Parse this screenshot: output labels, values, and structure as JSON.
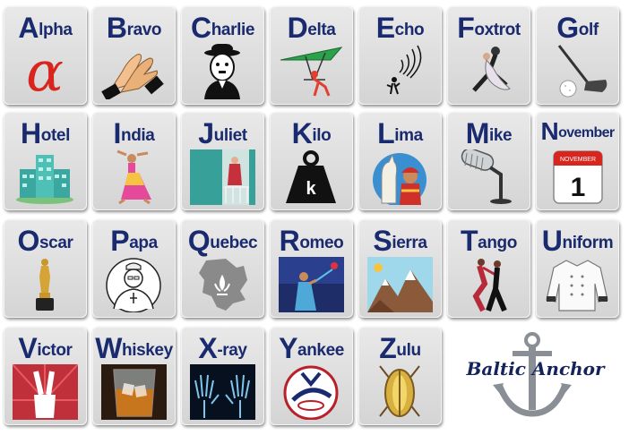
{
  "cards": [
    {
      "first": "A",
      "rest": "lpha",
      "icon": "alpha-symbol-icon"
    },
    {
      "first": "B",
      "rest": "ravo",
      "icon": "clapping-hands-icon"
    },
    {
      "first": "C",
      "rest": "harlie",
      "icon": "charlie-chaplin-icon"
    },
    {
      "first": "D",
      "rest": "elta",
      "icon": "hang-glider-icon"
    },
    {
      "first": "E",
      "rest": "cho",
      "icon": "echo-signal-icon"
    },
    {
      "first": "F",
      "rest": "oxtrot",
      "icon": "dancing-couple-icon"
    },
    {
      "first": "G",
      "rest": "olf",
      "icon": "golf-club-ball-icon"
    },
    {
      "first": "H",
      "rest": "otel",
      "icon": "hotel-building-icon"
    },
    {
      "first": "I",
      "rest": "ndia",
      "icon": "indian-dancer-icon"
    },
    {
      "first": "J",
      "rest": "uliet",
      "icon": "juliet-balcony-icon"
    },
    {
      "first": "K",
      "rest": "ilo",
      "icon": "kilo-weight-icon"
    },
    {
      "first": "L",
      "rest": "ima",
      "icon": "llama-peru-icon"
    },
    {
      "first": "M",
      "rest": "ike",
      "icon": "microphone-icon"
    },
    {
      "first": "N",
      "rest": "ovember",
      "icon": "calendar-icon"
    },
    {
      "first": "O",
      "rest": "scar",
      "icon": "oscar-statue-icon"
    },
    {
      "first": "P",
      "rest": "apa",
      "icon": "pope-icon"
    },
    {
      "first": "Q",
      "rest": "uebec",
      "icon": "quebec-map-icon"
    },
    {
      "first": "R",
      "rest": "omeo",
      "icon": "romeo-icon"
    },
    {
      "first": "S",
      "rest": "ierra",
      "icon": "mountains-icon"
    },
    {
      "first": "T",
      "rest": "ango",
      "icon": "tango-dancers-icon"
    },
    {
      "first": "U",
      "rest": "niform",
      "icon": "chef-uniform-icon"
    },
    {
      "first": "V",
      "rest": "ictor",
      "icon": "victory-hand-icon"
    },
    {
      "first": "W",
      "rest": "hiskey",
      "icon": "whiskey-glass-icon"
    },
    {
      "first": "X",
      "rest": "-ray",
      "icon": "xray-hands-icon"
    },
    {
      "first": "Y",
      "rest": "ankee",
      "icon": "yankees-logo-icon"
    },
    {
      "first": "Z",
      "rest": "ulu",
      "icon": "zulu-shield-icon"
    }
  ],
  "calendar": {
    "month": "NOVEMBER",
    "day": "1"
  },
  "kilo": {
    "label": "k"
  },
  "logo": {
    "text": "Baltic Anchor"
  },
  "colors": {
    "title": "#1a2a6e",
    "alpha": "#d8261e",
    "card": "#dcdcdc"
  }
}
